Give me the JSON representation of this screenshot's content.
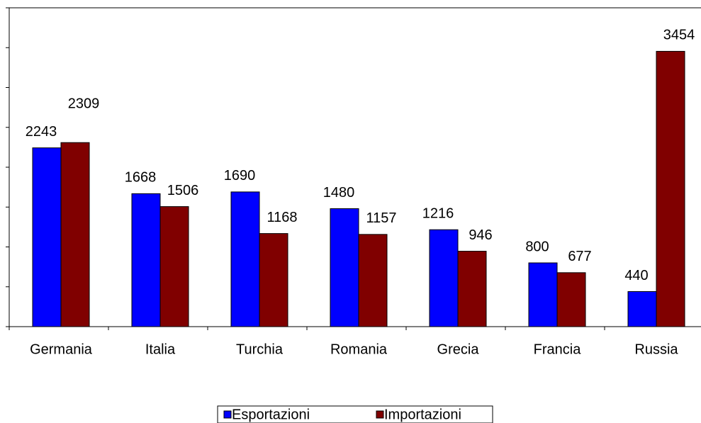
{
  "chart_data": {
    "type": "bar",
    "categories": [
      "Germania",
      "Italia",
      "Turchia",
      "Romania",
      "Grecia",
      "Francia",
      "Russia"
    ],
    "series": [
      {
        "name": "Esportazioni",
        "color": "#0000ff",
        "values": [
          2243,
          1668,
          1690,
          1480,
          1216,
          800,
          440
        ]
      },
      {
        "name": "Importazioni",
        "color": "#800000",
        "values": [
          2309,
          1506,
          1168,
          1157,
          946,
          677,
          3454
        ]
      }
    ],
    "ylim": [
      0,
      4000
    ],
    "yticks": [
      0,
      500,
      1000,
      1500,
      2000,
      2500,
      3000,
      3500,
      4000
    ]
  }
}
